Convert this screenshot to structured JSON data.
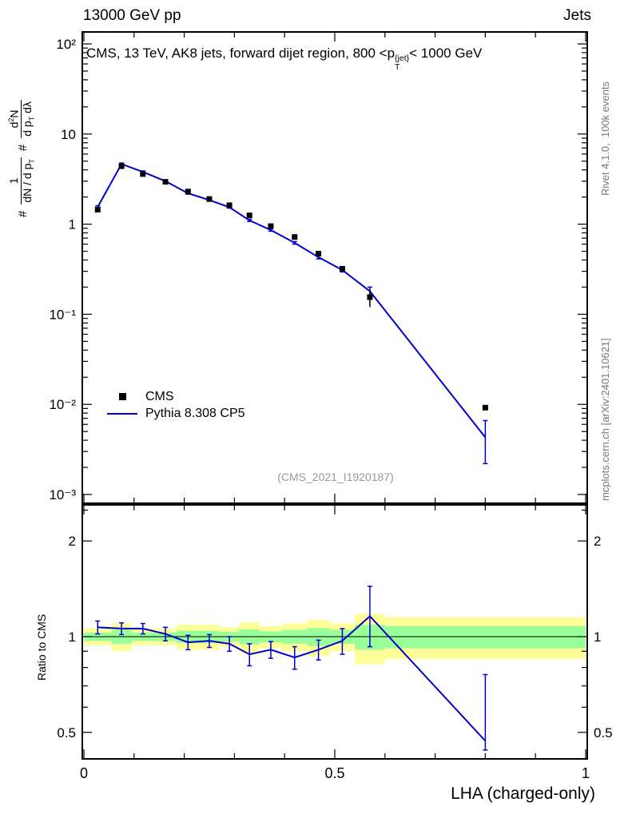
{
  "header": {
    "left": "13000 GeV pp",
    "right": "Jets"
  },
  "title": {
    "pre": "CMS, 13 TeV, AK8 jets, forward dijet region, 800 <p",
    "sup": "{jet}",
    "sub": "T",
    "post": "< 1000 GeV"
  },
  "y_label": {
    "hash1": "#",
    "frac1_num": "1",
    "frac1_den_pre": "dN / d p",
    "frac1_den_sub": "T",
    "hash2": "#",
    "frac2_num_pre": "d",
    "frac2_num_sup": "2",
    "frac2_num_post": "N",
    "frac2_den_pre": "d p",
    "frac2_den_sub": "T",
    "frac2_den_post": " dλ"
  },
  "legend": {
    "items": [
      {
        "label": "CMS",
        "marker": "square"
      },
      {
        "label": "Pythia 8.308 CP5",
        "marker": "line"
      }
    ]
  },
  "watermark": "(CMS_2021_I1920187)",
  "side_notes": {
    "top": "Rivet 4.1.0,  100k events",
    "bottom": "mcplots.cern.ch [arXiv:2401.10621]"
  },
  "ratio_ylabel": "Ratio to CMS",
  "xlabel": "LHA (charged-only)",
  "colors": {
    "pythia": "#0000cc",
    "cms": "#000000",
    "band_yellow": "#ffff99",
    "band_green": "#99ff99",
    "watermark": "#999999",
    "side_note": "#777777"
  },
  "chart_data": {
    "type": "line",
    "title": "CMS, 13 TeV, AK8 jets, forward dijet region, 800 < pT^{jet} < 1000 GeV",
    "xlabel": "LHA (charged-only)",
    "ylabel": "1/(dN/dpT) d2N/(dpT dlambda)",
    "ratio_ylabel": "Ratio to CMS",
    "x_range": [
      0,
      1
    ],
    "y_scale": "log",
    "y_range_main": [
      0.001,
      100
    ],
    "ratio_scale": "log",
    "ratio_range": [
      0.41,
      2.6
    ],
    "grid": false,
    "legend_position": "left-middle",
    "x_ticks": [
      {
        "v": 0,
        "label": "0"
      },
      {
        "v": 0.5,
        "label": "0.5"
      },
      {
        "v": 1,
        "label": "1"
      }
    ],
    "x_minor_ticks": [
      0.1,
      0.2,
      0.3,
      0.4,
      0.6,
      0.7,
      0.8,
      0.9
    ],
    "y_ticks_main": [
      {
        "v": 100,
        "label": "10²"
      },
      {
        "v": 10,
        "label": "10"
      },
      {
        "v": 1,
        "label": "1"
      },
      {
        "v": 0.1,
        "label": "10⁻¹"
      },
      {
        "v": 0.01,
        "label": "10⁻²"
      },
      {
        "v": 0.001,
        "label": "10⁻³"
      }
    ],
    "y_ticks_ratio": [
      {
        "v": 2,
        "label": "2"
      },
      {
        "v": 1,
        "label": "1"
      },
      {
        "v": 0.5,
        "label": "0.5"
      }
    ],
    "y_minor_ticks_ratio": [
      0.6,
      0.7,
      0.8,
      0.9,
      2.5
    ],
    "bin_edges": [
      0,
      0.055,
      0.095,
      0.14,
      0.185,
      0.23,
      0.27,
      0.31,
      0.35,
      0.395,
      0.445,
      0.49,
      0.54,
      0.6,
      1.0
    ],
    "x": [
      0.0275,
      0.075,
      0.1175,
      0.1625,
      0.2075,
      0.25,
      0.29,
      0.33,
      0.3725,
      0.42,
      0.4675,
      0.515,
      0.57,
      0.8
    ],
    "series": [
      {
        "name": "CMS",
        "type": "scatter",
        "marker": "square",
        "color": "#000000",
        "values": [
          1.45,
          4.4,
          3.6,
          2.95,
          2.3,
          1.9,
          1.62,
          1.25,
          0.95,
          0.72,
          0.47,
          0.32,
          0.155,
          0.0092
        ],
        "err": [
          0.06,
          0.12,
          0.1,
          0.08,
          0.06,
          0.05,
          0.045,
          0.04,
          0.035,
          0.03,
          0.025,
          0.02,
          0.035,
          0.0006
        ]
      },
      {
        "name": "Pythia 8.308 CP5",
        "type": "line",
        "color": "#0000cc",
        "values": [
          1.55,
          4.65,
          3.8,
          3.0,
          2.2,
          1.85,
          1.54,
          1.1,
          0.86,
          0.62,
          0.43,
          0.31,
          0.18,
          0.0043
        ],
        "err_down": [
          0.05,
          0.12,
          0.1,
          0.07,
          0.05,
          0.04,
          0.035,
          0.03,
          0.025,
          0.02,
          0.018,
          0.015,
          0.02,
          0.0021
        ],
        "err_up": [
          0.05,
          0.12,
          0.1,
          0.07,
          0.05,
          0.04,
          0.035,
          0.03,
          0.025,
          0.02,
          0.018,
          0.015,
          0.02,
          0.0023
        ]
      }
    ],
    "ratio": {
      "name": "Pythia 8.308 CP5 / CMS",
      "values": [
        1.07,
        1.06,
        1.06,
        1.02,
        0.96,
        0.97,
        0.95,
        0.88,
        0.91,
        0.86,
        0.91,
        0.97,
        1.16,
        0.47
      ],
      "err_down": [
        0.05,
        0.045,
        0.04,
        0.05,
        0.05,
        0.045,
        0.05,
        0.07,
        0.055,
        0.07,
        0.065,
        0.09,
        0.23,
        0.03
      ],
      "err_up": [
        0.05,
        0.045,
        0.04,
        0.05,
        0.05,
        0.045,
        0.05,
        0.07,
        0.055,
        0.07,
        0.065,
        0.09,
        0.28,
        0.29
      ],
      "band_yellow": [
        0.06,
        0.1,
        0.06,
        0.06,
        0.09,
        0.09,
        0.07,
        0.11,
        0.08,
        0.1,
        0.13,
        0.1,
        0.18,
        0.15
      ],
      "band_green": [
        0.03,
        0.05,
        0.03,
        0.03,
        0.045,
        0.045,
        0.035,
        0.055,
        0.04,
        0.05,
        0.065,
        0.05,
        0.09,
        0.08
      ]
    },
    "watermark": "(CMS_2021_I1920187)"
  }
}
